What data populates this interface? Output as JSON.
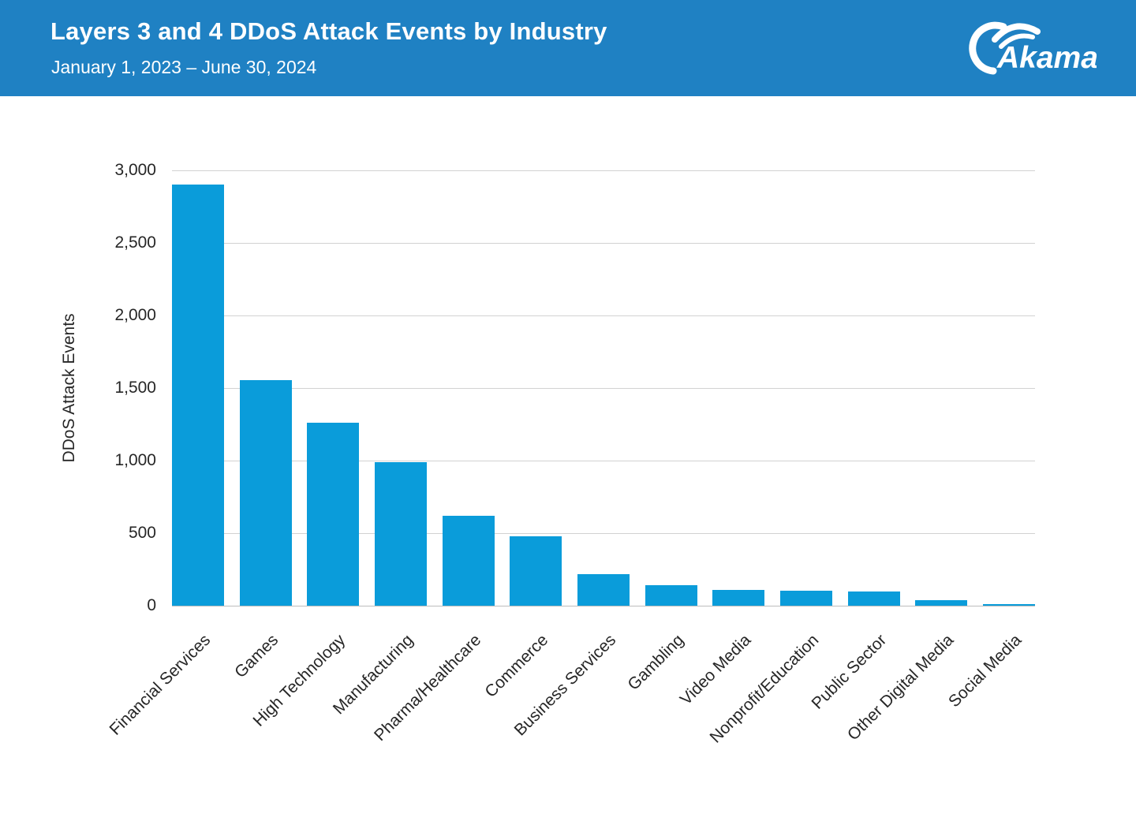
{
  "header": {
    "title": "Layers 3 and 4 DDoS Attack Events by Industry",
    "subtitle": "January 1, 2023 – June 30, 2024",
    "logo": {
      "text": "Akamai",
      "icon": "akamai-swoosh-icon"
    },
    "banner_color": "#1f81c3",
    "text_color": "#ffffff"
  },
  "chart_data": {
    "type": "bar",
    "title": "Layers 3 and 4 DDoS Attack Events by Industry",
    "subtitle": "January 1, 2023 – June 30, 2024",
    "categories": [
      "Financial Services",
      "Games",
      "High Technology",
      "Manufacturing",
      "Pharma/Healthcare",
      "Commerce",
      "Business Services",
      "Gambling",
      "Video Media",
      "Nonprofit/Education",
      "Public Sector",
      "Other Digital Media",
      "Social Media"
    ],
    "values": [
      2900,
      1555,
      1260,
      990,
      620,
      480,
      215,
      140,
      110,
      102,
      97,
      40,
      12
    ],
    "xlabel": "",
    "ylabel": "DDoS Attack Events",
    "ylim": [
      0,
      3000
    ],
    "yticks": [
      0,
      500,
      1000,
      1500,
      2000,
      2500,
      3000
    ],
    "ytick_labels": [
      "0",
      "500",
      "1,000",
      "1,500",
      "2,000",
      "2,500",
      "3,000"
    ],
    "grid": "horizontal",
    "legend": "none",
    "bar_color": "#0a9cda",
    "gridline_color": "#d2d2d2",
    "label_color": "#262626"
  }
}
